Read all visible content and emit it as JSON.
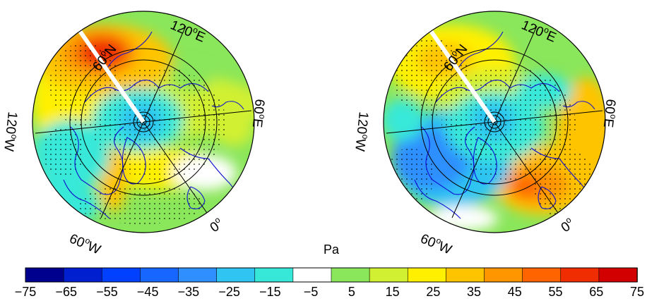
{
  "colorbar": {
    "unit": "Pa",
    "ticks": [
      "−75",
      "−65",
      "−55",
      "−45",
      "−35",
      "−25",
      "−15",
      "−5",
      "5",
      "15",
      "25",
      "35",
      "45",
      "55",
      "65",
      "75"
    ],
    "colors": [
      "#00008f",
      "#0020d0",
      "#0040ff",
      "#1766ff",
      "#2f8fff",
      "#2fc4f2",
      "#37e8d8",
      "#ffffff",
      "#8ae65a",
      "#d2f032",
      "#fff000",
      "#ffc400",
      "#ff9600",
      "#ff6400",
      "#f02d00",
      "#d20000"
    ]
  },
  "maps": [
    {
      "id": "left",
      "labels": {
        "lon_120e": "120",
        "lon_60e": "60",
        "lon_0": "0",
        "lon_60w": "60",
        "lon_120w": "120",
        "lat_60n": "60"
      },
      "label_units": {
        "degree": "o",
        "east": "E",
        "west": "W",
        "north": "N"
      }
    },
    {
      "id": "right",
      "labels": {
        "lon_120e": "120",
        "lon_60e": "60",
        "lon_0": "0",
        "lon_60w": "60",
        "lon_120w": "120",
        "lat_60n": "60"
      },
      "label_units": {
        "degree": "o",
        "east": "E",
        "west": "W",
        "north": "N"
      }
    }
  ]
}
